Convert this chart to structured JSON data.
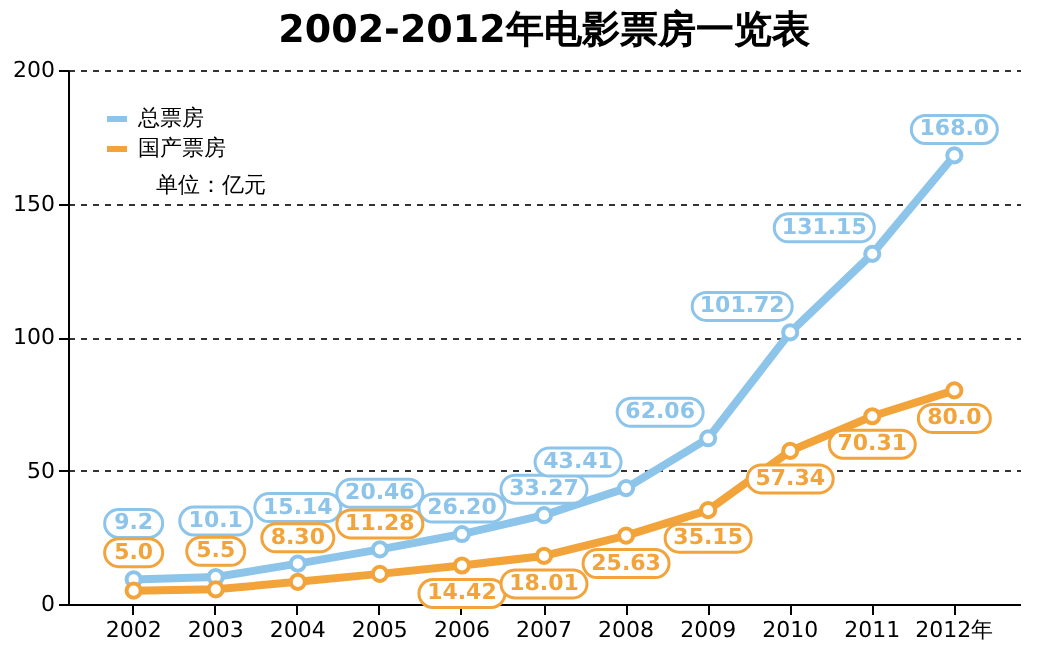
{
  "chart_data": {
    "type": "line",
    "title": "2002-2012年电影票房一览表",
    "categories": [
      "2002",
      "2003",
      "2004",
      "2005",
      "2006",
      "2007",
      "2008",
      "2009",
      "2010",
      "2011",
      "2012年"
    ],
    "series": [
      {
        "name": "总票房",
        "color": "#8cc4ea",
        "values": [
          9.2,
          10.1,
          15.14,
          20.46,
          26.2,
          33.27,
          43.41,
          62.06,
          101.72,
          131.15,
          168.0
        ],
        "value_labels": [
          "9.2",
          "10.1",
          "15.14",
          "20.46",
          "26.20",
          "33.27",
          "43.41",
          "62.06",
          "101.72",
          "131.15",
          "168.0"
        ]
      },
      {
        "name": "国产票房",
        "color": "#f2a33a",
        "values": [
          5.0,
          5.5,
          8.3,
          11.28,
          14.42,
          18.01,
          25.63,
          35.15,
          57.34,
          70.31,
          80.0
        ],
        "value_labels": [
          "5.0",
          "5.5",
          "8.30",
          "11.28",
          "14.42",
          "18.01",
          "25.63",
          "35.15",
          "57.34",
          "70.31",
          "80.0"
        ]
      }
    ],
    "annotations": [
      "单位：亿元"
    ],
    "ylim": [
      0,
      200
    ],
    "yticks": [
      0,
      50,
      100,
      150,
      200
    ],
    "grid": "y",
    "legend": "top left",
    "marker": "circle",
    "line_style": "solid"
  }
}
